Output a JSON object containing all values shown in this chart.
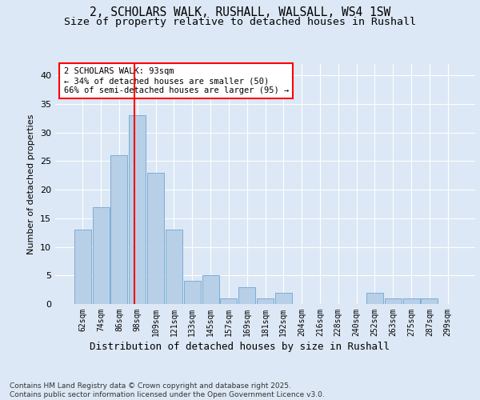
{
  "title_line1": "2, SCHOLARS WALK, RUSHALL, WALSALL, WS4 1SW",
  "title_line2": "Size of property relative to detached houses in Rushall",
  "xlabel": "Distribution of detached houses by size in Rushall",
  "ylabel": "Number of detached properties",
  "categories": [
    "62sqm",
    "74sqm",
    "86sqm",
    "98sqm",
    "109sqm",
    "121sqm",
    "133sqm",
    "145sqm",
    "157sqm",
    "169sqm",
    "181sqm",
    "192sqm",
    "204sqm",
    "216sqm",
    "228sqm",
    "240sqm",
    "252sqm",
    "263sqm",
    "275sqm",
    "287sqm",
    "299sqm"
  ],
  "values": [
    13,
    17,
    26,
    33,
    23,
    13,
    4,
    5,
    1,
    3,
    1,
    2,
    0,
    0,
    0,
    0,
    2,
    1,
    1,
    1,
    0
  ],
  "bar_color": "#b8cfe8",
  "bar_edge_color": "#7aadd4",
  "vline_x": 2.82,
  "vline_color": "red",
  "annotation_text": "2 SCHOLARS WALK: 93sqm\n← 34% of detached houses are smaller (50)\n66% of semi-detached houses are larger (95) →",
  "annotation_box_color": "white",
  "annotation_box_edge_color": "red",
  "ylim": [
    0,
    42
  ],
  "yticks": [
    0,
    5,
    10,
    15,
    20,
    25,
    30,
    35,
    40
  ],
  "bg_color": "#dce8f5",
  "plot_bg_color": "#dce8f5",
  "footer_text": "Contains HM Land Registry data © Crown copyright and database right 2025.\nContains public sector information licensed under the Open Government Licence v3.0.",
  "title_fontsize": 10.5,
  "subtitle_fontsize": 9.5,
  "annot_fontsize": 7.5,
  "ylabel_fontsize": 8,
  "xlabel_fontsize": 9,
  "tick_fontsize": 7,
  "footer_fontsize": 6.5
}
